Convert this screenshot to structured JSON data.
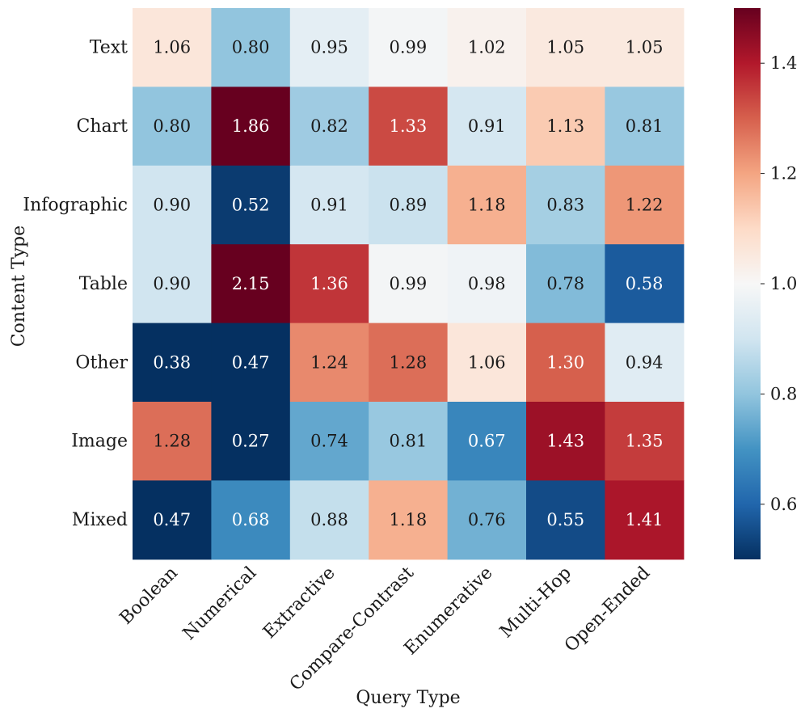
{
  "chart_data": {
    "type": "heatmap",
    "title": "",
    "xlabel": "Query Type",
    "ylabel": "Content Type",
    "x_categories": [
      "Boolean",
      "Numerical",
      "Extractive",
      "Compare-Contrast",
      "Enumerative",
      "Multi-Hop",
      "Open-Ended"
    ],
    "y_categories": [
      "Text",
      "Chart",
      "Infographic",
      "Table",
      "Other",
      "Image",
      "Mixed"
    ],
    "values": [
      [
        1.06,
        0.8,
        0.95,
        0.99,
        1.02,
        1.05,
        1.05
      ],
      [
        0.8,
        1.86,
        0.82,
        1.33,
        0.91,
        1.13,
        0.81
      ],
      [
        0.9,
        0.52,
        0.91,
        0.89,
        1.18,
        0.83,
        1.22
      ],
      [
        0.9,
        2.15,
        1.36,
        0.99,
        0.98,
        0.78,
        0.58
      ],
      [
        0.38,
        0.47,
        1.24,
        1.28,
        1.06,
        1.3,
        0.94
      ],
      [
        1.28,
        0.27,
        0.74,
        0.81,
        0.67,
        1.43,
        1.35
      ],
      [
        0.47,
        0.68,
        0.88,
        1.18,
        0.76,
        0.55,
        1.41
      ]
    ],
    "value_format": "2 decimals",
    "colormap": "RdBu_r",
    "color_range": [
      0.5,
      1.5
    ],
    "colorbar": {
      "ticks": [
        0.6,
        0.8,
        1.0,
        1.2,
        1.4
      ],
      "tick_labels": [
        "0.6",
        "0.8",
        "1.0",
        "1.2",
        "1.4"
      ]
    },
    "grid": false,
    "legend": "colorbar-right"
  }
}
